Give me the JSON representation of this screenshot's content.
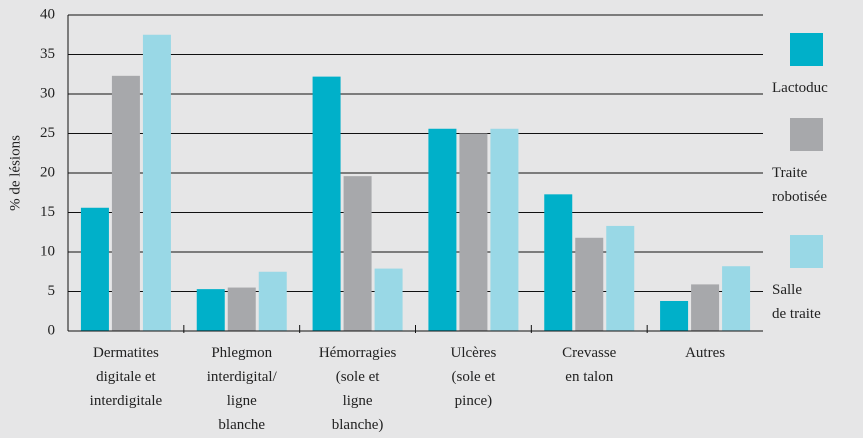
{
  "chart_data": {
    "type": "bar",
    "ylabel": "% de lésions",
    "categories": [
      "Dermatites\ndigitale et\ninterdigitale",
      "Phlegmon\ninterdigital/\nligne\nblanche",
      "Hémorragies\n(sole et\nligne\nblanche)",
      "Ulcères\n(sole et\npince)",
      "Crevasse\nen talon",
      "Autres"
    ],
    "series": [
      {
        "name": "Lactoduc",
        "color": "#00b0c9",
        "values": [
          15.6,
          5.3,
          32.2,
          25.6,
          17.3,
          3.8
        ]
      },
      {
        "name": "Traite\nrobotisée",
        "color": "#a7a8ab",
        "values": [
          32.3,
          5.5,
          19.6,
          25.0,
          11.8,
          5.9
        ]
      },
      {
        "name": "Salle\nde traite",
        "color": "#99d8e6",
        "values": [
          37.5,
          7.5,
          7.9,
          25.6,
          13.3,
          8.2
        ]
      }
    ],
    "ylim": [
      0,
      40
    ],
    "yticks": [
      0,
      5,
      10,
      15,
      20,
      25,
      30,
      35,
      40
    ],
    "grid": true,
    "legend": "right"
  }
}
